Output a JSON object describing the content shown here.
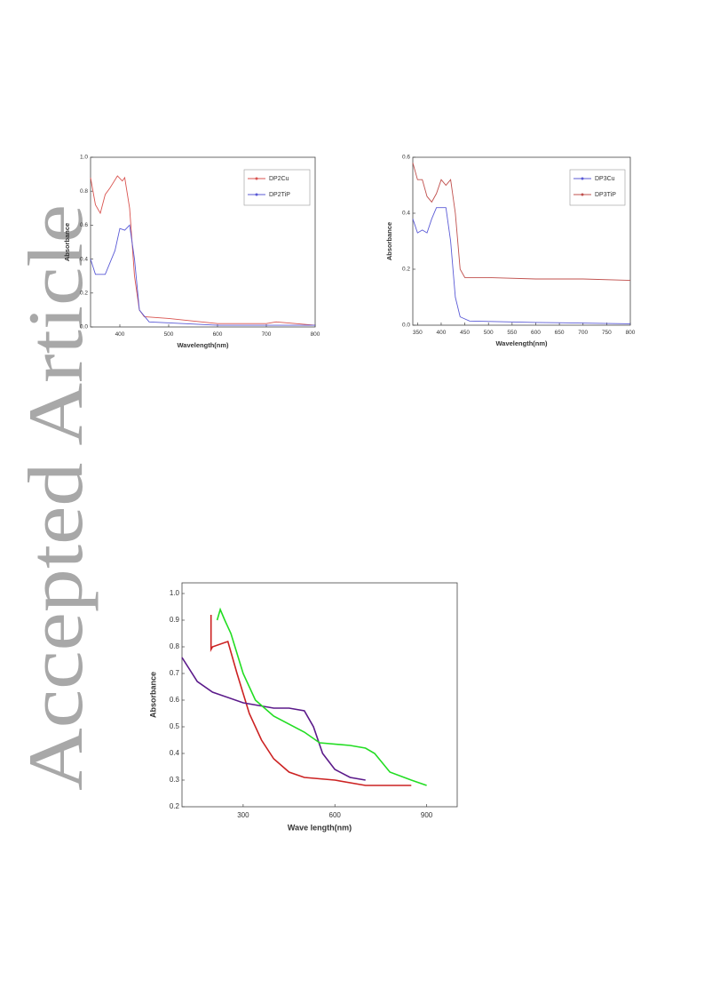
{
  "watermark": "Accepted Article",
  "chart_data": [
    {
      "type": "line",
      "xlabel": "Wavelength(nm)",
      "ylabel": "Absorbance",
      "xlim": [
        340,
        800
      ],
      "xticks": [
        400,
        500,
        600,
        700,
        800
      ],
      "ylim": [
        0,
        1
      ],
      "yticks": [
        {
          "value": 0,
          "label": "0.0"
        },
        0.2,
        0.4,
        0.6,
        0.8,
        {
          "value": 1,
          "label": "1.0"
        }
      ],
      "legend": "top-right",
      "series": [
        {
          "name": "DP2Cu",
          "color": "#d9534f",
          "x": [
            340,
            350,
            360,
            370,
            380,
            395,
            405,
            410,
            420,
            430,
            440,
            450,
            500,
            600,
            700,
            720,
            800
          ],
          "values": [
            0.88,
            0.72,
            0.67,
            0.78,
            0.82,
            0.89,
            0.86,
            0.88,
            0.7,
            0.3,
            0.1,
            0.06,
            0.05,
            0.02,
            0.02,
            0.03,
            0.01
          ]
        },
        {
          "name": "DP2TiP",
          "color": "#5a5ad6",
          "x": [
            340,
            350,
            370,
            390,
            400,
            410,
            420,
            430,
            440,
            460,
            600,
            800
          ],
          "values": [
            0.4,
            0.31,
            0.31,
            0.45,
            0.58,
            0.57,
            0.6,
            0.4,
            0.1,
            0.03,
            0.01,
            0.01
          ]
        }
      ]
    },
    {
      "type": "line",
      "xlabel": "Wavelength(nm)",
      "ylabel": "Absorbance",
      "xlim": [
        340,
        800
      ],
      "xticks": [
        350,
        400,
        450,
        500,
        550,
        600,
        650,
        700,
        750,
        800
      ],
      "ylim": [
        0,
        0.6
      ],
      "yticks": [
        {
          "value": 0,
          "label": "0.0"
        },
        0.2,
        0.4,
        0.6
      ],
      "legend": "top-right",
      "series": [
        {
          "name": "DP3Cu",
          "color": "#5a5ad6",
          "x": [
            340,
            350,
            360,
            370,
            380,
            390,
            400,
            410,
            420,
            430,
            440,
            460,
            600,
            800
          ],
          "values": [
            0.38,
            0.33,
            0.34,
            0.33,
            0.38,
            0.42,
            0.42,
            0.42,
            0.3,
            0.1,
            0.03,
            0.015,
            0.01,
            0.005
          ]
        },
        {
          "name": "DP3TiP",
          "color": "#c0504d",
          "x": [
            340,
            350,
            360,
            370,
            380,
            390,
            400,
            410,
            420,
            430,
            440,
            450,
            500,
            600,
            700,
            800
          ],
          "values": [
            0.58,
            0.52,
            0.52,
            0.46,
            0.44,
            0.47,
            0.52,
            0.5,
            0.52,
            0.4,
            0.2,
            0.17,
            0.17,
            0.165,
            0.165,
            0.16
          ]
        }
      ]
    },
    {
      "type": "line",
      "xlabel": "Wave length(nm)",
      "ylabel": "Absorbance",
      "xlim": [
        100,
        1000
      ],
      "xticks": [
        300,
        600,
        900
      ],
      "ylim": [
        0.2,
        1.04
      ],
      "yticks": [
        0.2,
        0.3,
        0.4,
        0.5,
        0.6,
        0.7,
        0.8,
        0.9,
        {
          "value": 1,
          "label": "1.0"
        }
      ],
      "series": [
        {
          "color": "#cc2222",
          "x": [
            195,
            195,
            200,
            250,
            280,
            320,
            360,
            400,
            450,
            500,
            600,
            700,
            850
          ],
          "values": [
            0.92,
            0.79,
            0.8,
            0.82,
            0.7,
            0.55,
            0.45,
            0.38,
            0.33,
            0.31,
            0.3,
            0.28,
            0.28
          ]
        },
        {
          "color": "#5b1a8a",
          "x": [
            100,
            150,
            200,
            300,
            400,
            450,
            500,
            530,
            560,
            600,
            650,
            700
          ],
          "values": [
            0.76,
            0.67,
            0.63,
            0.59,
            0.57,
            0.57,
            0.56,
            0.5,
            0.4,
            0.34,
            0.31,
            0.3
          ]
        },
        {
          "color": "#22dd22",
          "x": [
            215,
            225,
            240,
            260,
            300,
            340,
            400,
            500,
            550,
            650,
            700,
            730,
            780,
            850,
            900
          ],
          "values": [
            0.9,
            0.94,
            0.9,
            0.85,
            0.7,
            0.6,
            0.54,
            0.48,
            0.44,
            0.43,
            0.42,
            0.4,
            0.33,
            0.3,
            0.28
          ]
        }
      ]
    }
  ]
}
